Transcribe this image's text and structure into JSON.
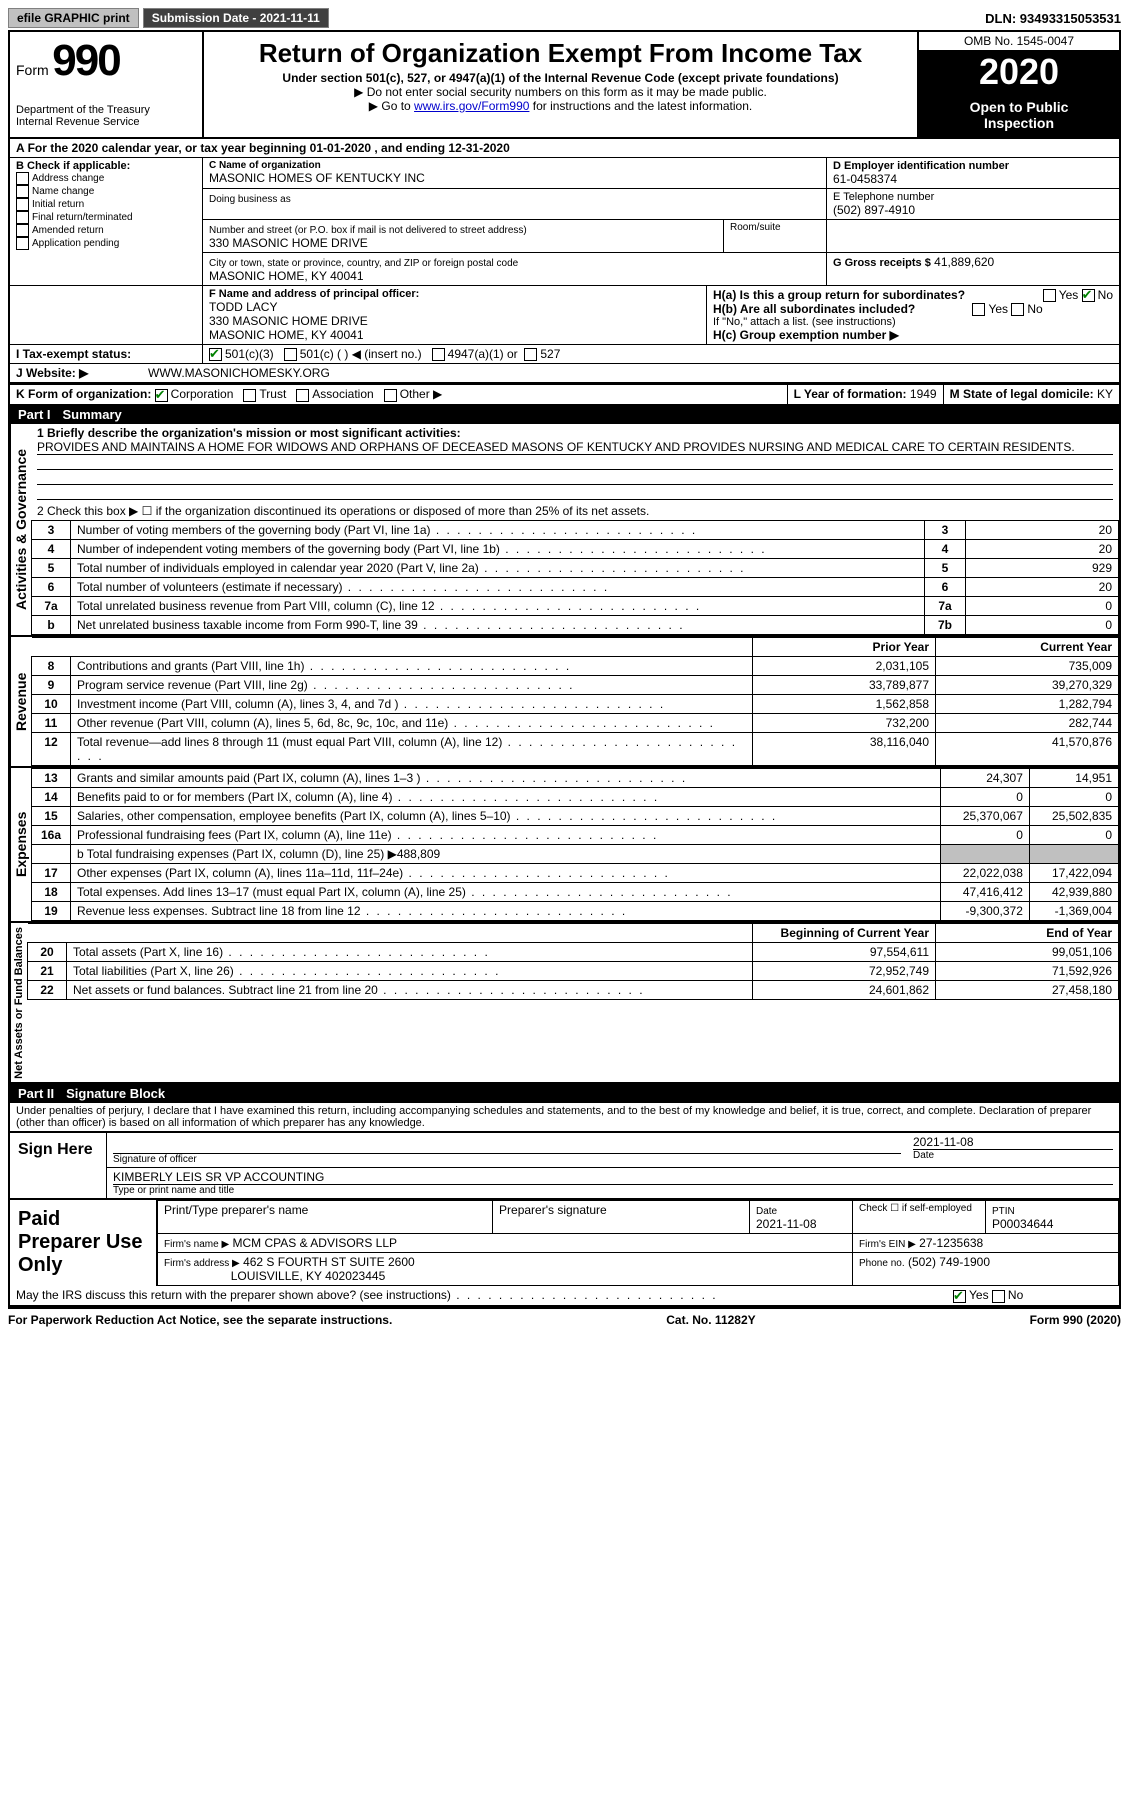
{
  "topbar": {
    "efile": "efile GRAPHIC print",
    "submission_label": "Submission Date - 2021-11-11",
    "dln": "DLN: 93493315053531"
  },
  "header": {
    "form_word": "Form",
    "form_num": "990",
    "dept": "Department of the Treasury",
    "irs": "Internal Revenue Service",
    "title": "Return of Organization Exempt From Income Tax",
    "sub1": "Under section 501(c), 527, or 4947(a)(1) of the Internal Revenue Code (except private foundations)",
    "sub2": "▶ Do not enter social security numbers on this form as it may be made public.",
    "sub3_pre": "▶ Go to ",
    "sub3_link": "www.irs.gov/Form990",
    "sub3_post": " for instructions and the latest information.",
    "omb": "OMB No. 1545-0047",
    "year": "2020",
    "open1": "Open to Public",
    "open2": "Inspection"
  },
  "A_line": "For the 2020 calendar year, or tax year beginning 01-01-2020    , and ending 12-31-2020",
  "B": {
    "label": "B Check if applicable:",
    "opts": [
      "Address change",
      "Name change",
      "Initial return",
      "Final return/terminated",
      "Amended return",
      "Application pending"
    ]
  },
  "C": {
    "name_label": "C Name of organization",
    "name": "MASONIC HOMES OF KENTUCKY INC",
    "dba_label": "Doing business as",
    "addr_label": "Number and street (or P.O. box if mail is not delivered to street address)",
    "room_label": "Room/suite",
    "addr": "330 MASONIC HOME DRIVE",
    "city_label": "City or town, state or province, country, and ZIP or foreign postal code",
    "city": "MASONIC HOME, KY  40041"
  },
  "D": {
    "label": "D Employer identification number",
    "val": "61-0458374"
  },
  "E": {
    "label": "E Telephone number",
    "val": "(502) 897-4910"
  },
  "G": {
    "label": "G Gross receipts $",
    "val": "41,889,620"
  },
  "F": {
    "label": "F  Name and address of principal officer:",
    "name": "TODD LACY",
    "addr1": "330 MASONIC HOME DRIVE",
    "addr2": "MASONIC HOME, KY  40041"
  },
  "H": {
    "a": "H(a)  Is this a group return for subordinates?",
    "b": "H(b)  Are all subordinates included?",
    "b_note": "If \"No,\" attach a list. (see instructions)",
    "c": "H(c)  Group exemption number ▶",
    "yes": "Yes",
    "no": "No"
  },
  "I": {
    "label": "Tax-exempt status:",
    "opt1": "501(c)(3)",
    "opt2": "501(c) (   ) ◀ (insert no.)",
    "opt3": "4947(a)(1) or",
    "opt4": "527"
  },
  "J": {
    "label": "Website: ▶",
    "val": "WWW.MASONICHOMESKY.ORG"
  },
  "K": {
    "label": "K Form of organization:",
    "opts": [
      "Corporation",
      "Trust",
      "Association",
      "Other ▶"
    ]
  },
  "L": {
    "label": "L Year of formation:",
    "val": "1949"
  },
  "M": {
    "label": "M State of legal domicile:",
    "val": "KY"
  },
  "part1": {
    "num": "Part I",
    "title": "Summary"
  },
  "p1": {
    "l1_label": "1  Briefly describe the organization's mission or most significant activities:",
    "l1_text": "PROVIDES AND MAINTAINS A HOME FOR WIDOWS AND ORPHANS OF DECEASED MASONS OF KENTUCKY AND PROVIDES NURSING AND MEDICAL CARE TO CERTAIN RESIDENTS.",
    "l2": "2   Check this box ▶ ☐  if the organization discontinued its operations or disposed of more than 25% of its net assets.",
    "prior_hdr": "Prior Year",
    "curr_hdr": "Current Year",
    "boy_hdr": "Beginning of Current Year",
    "eoy_hdr": "End of Year",
    "lines_ag": [
      {
        "n": "3",
        "t": "Number of voting members of the governing body (Part VI, line 1a)",
        "box": "3",
        "v": "20"
      },
      {
        "n": "4",
        "t": "Number of independent voting members of the governing body (Part VI, line 1b)",
        "box": "4",
        "v": "20"
      },
      {
        "n": "5",
        "t": "Total number of individuals employed in calendar year 2020 (Part V, line 2a)",
        "box": "5",
        "v": "929"
      },
      {
        "n": "6",
        "t": "Total number of volunteers (estimate if necessary)",
        "box": "6",
        "v": "20"
      },
      {
        "n": "7a",
        "t": "Total unrelated business revenue from Part VIII, column (C), line 12",
        "box": "7a",
        "v": "0"
      },
      {
        "n": "b",
        "t": "Net unrelated business taxable income from Form 990-T, line 39",
        "box": "7b",
        "v": "0"
      }
    ],
    "lines_rev": [
      {
        "n": "8",
        "t": "Contributions and grants (Part VIII, line 1h)",
        "py": "2,031,105",
        "cy": "735,009"
      },
      {
        "n": "9",
        "t": "Program service revenue (Part VIII, line 2g)",
        "py": "33,789,877",
        "cy": "39,270,329"
      },
      {
        "n": "10",
        "t": "Investment income (Part VIII, column (A), lines 3, 4, and 7d )",
        "py": "1,562,858",
        "cy": "1,282,794"
      },
      {
        "n": "11",
        "t": "Other revenue (Part VIII, column (A), lines 5, 6d, 8c, 9c, 10c, and 11e)",
        "py": "732,200",
        "cy": "282,744"
      },
      {
        "n": "12",
        "t": "Total revenue—add lines 8 through 11 (must equal Part VIII, column (A), line 12)",
        "py": "38,116,040",
        "cy": "41,570,876"
      }
    ],
    "lines_exp": [
      {
        "n": "13",
        "t": "Grants and similar amounts paid (Part IX, column (A), lines 1–3 )",
        "py": "24,307",
        "cy": "14,951"
      },
      {
        "n": "14",
        "t": "Benefits paid to or for members (Part IX, column (A), line 4)",
        "py": "0",
        "cy": "0"
      },
      {
        "n": "15",
        "t": "Salaries, other compensation, employee benefits (Part IX, column (A), lines 5–10)",
        "py": "25,370,067",
        "cy": "25,502,835"
      },
      {
        "n": "16a",
        "t": "Professional fundraising fees (Part IX, column (A), line 11e)",
        "py": "0",
        "cy": "0"
      }
    ],
    "line_b": "b  Total fundraising expenses (Part IX, column (D), line 25) ▶488,809",
    "lines_exp2": [
      {
        "n": "17",
        "t": "Other expenses (Part IX, column (A), lines 11a–11d, 11f–24e)",
        "py": "22,022,038",
        "cy": "17,422,094"
      },
      {
        "n": "18",
        "t": "Total expenses. Add lines 13–17 (must equal Part IX, column (A), line 25)",
        "py": "47,416,412",
        "cy": "42,939,880"
      },
      {
        "n": "19",
        "t": "Revenue less expenses. Subtract line 18 from line 12",
        "py": "-9,300,372",
        "cy": "-1,369,004"
      }
    ],
    "lines_na": [
      {
        "n": "20",
        "t": "Total assets (Part X, line 16)",
        "py": "97,554,611",
        "cy": "99,051,106"
      },
      {
        "n": "21",
        "t": "Total liabilities (Part X, line 26)",
        "py": "72,952,749",
        "cy": "71,592,926"
      },
      {
        "n": "22",
        "t": "Net assets or fund balances. Subtract line 21 from line 20",
        "py": "24,601,862",
        "cy": "27,458,180"
      }
    ]
  },
  "vlabels": {
    "ag": "Activities & Governance",
    "rev": "Revenue",
    "exp": "Expenses",
    "na": "Net Assets or Fund Balances"
  },
  "part2": {
    "num": "Part II",
    "title": "Signature Block"
  },
  "penalty": "Under penalties of perjury, I declare that I have examined this return, including accompanying schedules and statements, and to the best of my knowledge and belief, it is true, correct, and complete. Declaration of preparer (other than officer) is based on all information of which preparer has any knowledge.",
  "sign": {
    "here": "Sign Here",
    "sig_label": "Signature of officer",
    "date_label": "Date",
    "date": "2021-11-08",
    "name": "KIMBERLY LEIS  SR VP ACCOUNTING",
    "name_label": "Type or print name and title"
  },
  "prep": {
    "title": "Paid Preparer Use Only",
    "col1": "Print/Type preparer's name",
    "col2": "Preparer's signature",
    "col3": "Date",
    "date": "2021-11-08",
    "check_label": "Check ☐ if self-employed",
    "ptin_label": "PTIN",
    "ptin": "P00034644",
    "firm_name_label": "Firm's name      ▶",
    "firm_name": "MCM CPAS & ADVISORS LLP",
    "firm_ein_label": "Firm's EIN ▶",
    "firm_ein": "27-1235638",
    "firm_addr_label": "Firm's address ▶",
    "firm_addr1": "462 S FOURTH ST SUITE 2600",
    "firm_addr2": "LOUISVILLE, KY  402023445",
    "phone_label": "Phone no.",
    "phone": "(502) 749-1900"
  },
  "discuss": "May the IRS discuss this return with the preparer shown above? (see instructions)",
  "footer": {
    "left": "For Paperwork Reduction Act Notice, see the separate instructions.",
    "mid": "Cat. No. 11282Y",
    "right": "Form 990 (2020)"
  }
}
